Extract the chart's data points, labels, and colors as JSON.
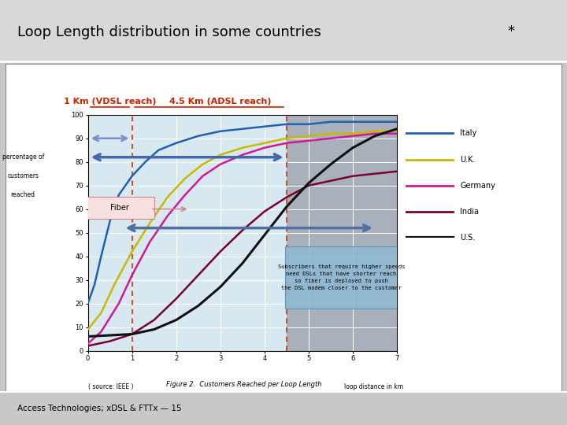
{
  "title": "Loop Length distribution in some countries",
  "title_star": "*",
  "bg_color": "#c8c8c8",
  "plot_bg_light": "#d8e8f0",
  "plot_bg_dark": "#a8b0bc",
  "vdsl_line_x": 1.0,
  "adsl_line_x": 4.5,
  "xlabel_right": "loop distance in km",
  "ylabel_line1": "percentage of",
  "ylabel_line2": "customers",
  "ylabel_line3": "reached",
  "source_text": "( source: IEEE )",
  "figure_caption": "Figure 2.  Customers Reached per Loop Length",
  "bottom_text": "Access Technologies; xDSL & FTTx — 15",
  "annotation_text": "Subscribers that require higher speeds\nneed DSLs that have shorter reach\nso fiber is deployed to push\nthe DSL modem closer to the customer",
  "vdsl_label": "1 Km (VDSL reach)",
  "adsl_label": "4.5 Km (ADSL reach)",
  "fiber_label": "Fiber",
  "xlim": [
    0,
    7
  ],
  "ylim": [
    0,
    100
  ],
  "xticks": [
    0,
    1,
    2,
    3,
    4,
    5,
    6,
    7
  ],
  "yticks": [
    0,
    10,
    20,
    30,
    40,
    50,
    60,
    70,
    80,
    90,
    100
  ],
  "countries": [
    "Italy",
    "U.K.",
    "Germany",
    "India",
    "U.S."
  ],
  "line_colors": [
    "#2060b0",
    "#c8b800",
    "#d01898",
    "#780030",
    "#101010"
  ],
  "italy_x": [
    0.0,
    0.15,
    0.3,
    0.5,
    0.7,
    1.0,
    1.3,
    1.6,
    2.0,
    2.5,
    3.0,
    3.5,
    4.0,
    4.5,
    5.0,
    5.5,
    6.0,
    6.5,
    7.0
  ],
  "italy_y": [
    20,
    28,
    40,
    55,
    66,
    74,
    80,
    85,
    88,
    91,
    93,
    94,
    95,
    96,
    96,
    97,
    97,
    97,
    97
  ],
  "uk_x": [
    0.0,
    0.3,
    0.6,
    1.0,
    1.4,
    1.8,
    2.2,
    2.6,
    3.0,
    3.5,
    4.0,
    4.5,
    5.0,
    5.5,
    6.0,
    6.5,
    7.0
  ],
  "uk_y": [
    9,
    16,
    28,
    42,
    54,
    65,
    73,
    79,
    83,
    86,
    88,
    90,
    91,
    92,
    92,
    93,
    93
  ],
  "germany_x": [
    0.0,
    0.3,
    0.7,
    1.0,
    1.4,
    1.8,
    2.2,
    2.6,
    3.0,
    3.5,
    4.0,
    4.5,
    5.0,
    5.5,
    6.0,
    6.5,
    7.0
  ],
  "germany_y": [
    3,
    8,
    20,
    32,
    46,
    57,
    66,
    74,
    79,
    83,
    86,
    88,
    89,
    90,
    91,
    92,
    92
  ],
  "india_x": [
    0.0,
    0.5,
    1.0,
    1.5,
    2.0,
    2.5,
    3.0,
    3.5,
    4.0,
    4.5,
    5.0,
    5.5,
    6.0,
    6.5,
    7.0
  ],
  "india_y": [
    2,
    4,
    7,
    13,
    22,
    32,
    42,
    51,
    59,
    65,
    70,
    72,
    74,
    75,
    76
  ],
  "us_x": [
    0.0,
    0.5,
    1.0,
    1.5,
    2.0,
    2.5,
    3.0,
    3.5,
    4.0,
    4.5,
    5.0,
    5.5,
    6.0,
    6.5,
    7.0
  ],
  "us_y": [
    6,
    6.5,
    7,
    9,
    13,
    19,
    27,
    37,
    49,
    61,
    71,
    79,
    86,
    91,
    94
  ]
}
